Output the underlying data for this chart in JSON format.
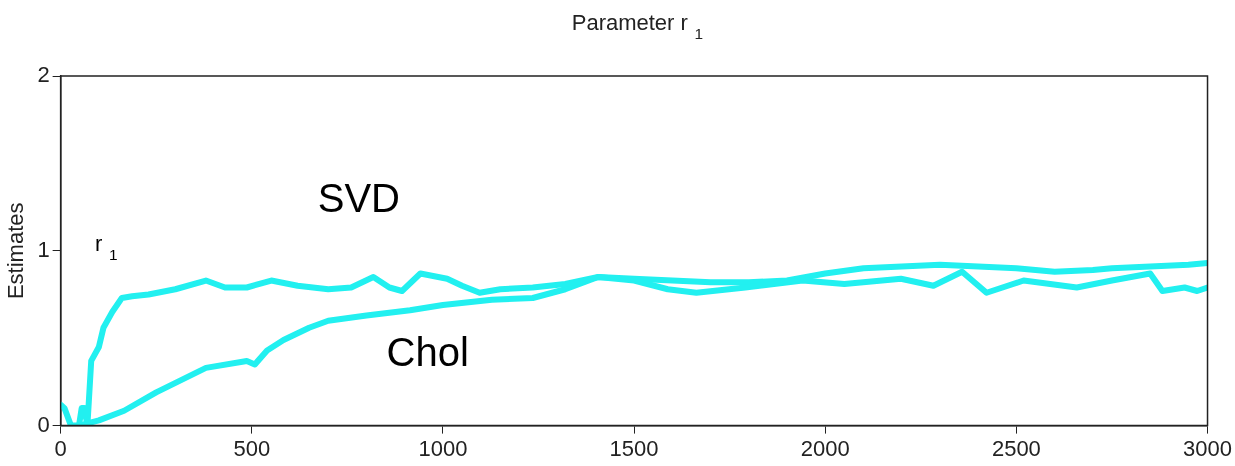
{
  "chart_data": {
    "type": "line",
    "title": "Parameter r$_{1}$",
    "ylabel": "Estimates",
    "xlim": [
      0,
      3000
    ],
    "xticks": [
      0,
      500,
      1000,
      1500,
      2000,
      2500,
      3000
    ],
    "ylim": [
      0,
      2
    ],
    "yticks": [
      0,
      1,
      2
    ],
    "grid": false,
    "legend": false,
    "marker": "none",
    "line_style": "solid",
    "annotations": [
      "r$_{1}$"
    ],
    "series": [
      {
        "name": "SVD",
        "color": "#22f0f0",
        "x": [
          0,
          10,
          27,
          48,
          55,
          62,
          70,
          80,
          100,
          112,
          135,
          160,
          187,
          230,
          300,
          380,
          430,
          487,
          551,
          620,
          700,
          760,
          818,
          860,
          893,
          941,
          1011,
          1050,
          1096,
          1150,
          1235,
          1320,
          1406,
          1500,
          1588,
          1663,
          1791,
          1941,
          2050,
          2198,
          2283,
          2358,
          2422,
          2519,
          2658,
          2750,
          2850,
          2882,
          2940,
          2973,
          3000
        ],
        "values": [
          0.12,
          0.1,
          0,
          0,
          0.1,
          0.1,
          0,
          0.37,
          0.45,
          0.56,
          0.65,
          0.73,
          0.74,
          0.75,
          0.78,
          0.83,
          0.79,
          0.79,
          0.83,
          0.8,
          0.78,
          0.79,
          0.85,
          0.79,
          0.77,
          0.87,
          0.84,
          0.8,
          0.76,
          0.78,
          0.79,
          0.81,
          0.85,
          0.83,
          0.78,
          0.76,
          0.79,
          0.83,
          0.81,
          0.84,
          0.8,
          0.88,
          0.76,
          0.83,
          0.79,
          0.83,
          0.87,
          0.77,
          0.79,
          0.77,
          0.79
        ]
      },
      {
        "name": "Chol",
        "color": "#22f0f0",
        "x": [
          48,
          100,
          166,
          250,
          380,
          487,
          508,
          540,
          583,
          650,
          700,
          800,
          914,
          1000,
          1128,
          1235,
          1320,
          1406,
          1500,
          1600,
          1700,
          1800,
          1900,
          1950,
          2000,
          2100,
          2200,
          2300,
          2400,
          2500,
          2600,
          2700,
          2750,
          2850,
          2950,
          3000
        ],
        "values": [
          0,
          0.03,
          0.085,
          0.19,
          0.33,
          0.37,
          0.35,
          0.43,
          0.49,
          0.56,
          0.6,
          0.63,
          0.66,
          0.69,
          0.72,
          0.73,
          0.78,
          0.85,
          0.84,
          0.83,
          0.82,
          0.82,
          0.83,
          0.85,
          0.87,
          0.9,
          0.91,
          0.92,
          0.91,
          0.9,
          0.88,
          0.89,
          0.9,
          0.91,
          0.92,
          0.93
        ]
      }
    ]
  }
}
